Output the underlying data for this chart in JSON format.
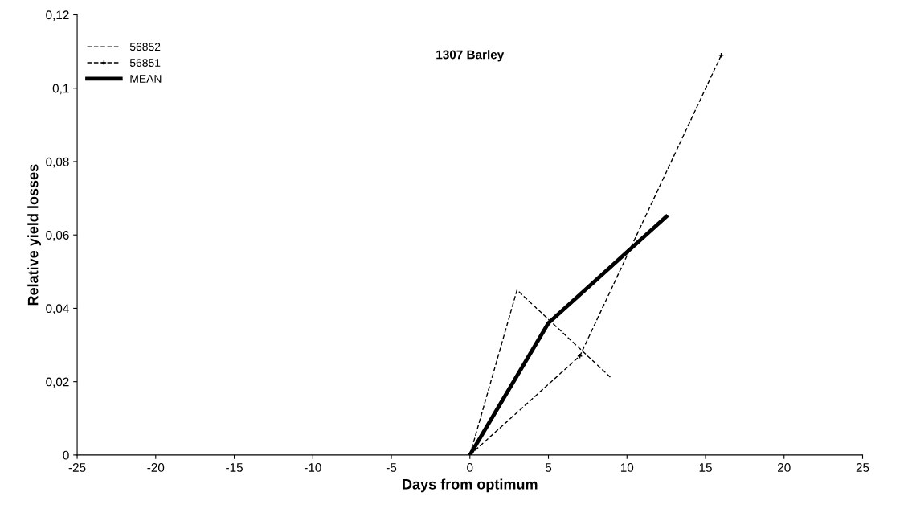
{
  "chart_data": {
    "type": "line",
    "title": "1307 Barley",
    "xlabel": "Days from optimum",
    "ylabel": "Relative yield losses",
    "xlim": [
      -25,
      25
    ],
    "xticks": [
      {
        "value": -25,
        "label": "-25"
      },
      {
        "value": -20,
        "label": "-20"
      },
      {
        "value": -15,
        "label": "-15"
      },
      {
        "value": -10,
        "label": "-10"
      },
      {
        "value": -5,
        "label": "-5"
      },
      0,
      5,
      10,
      15,
      20,
      25
    ],
    "ylim": [
      0,
      0.12
    ],
    "yticks": [
      0,
      {
        "value": 0.02,
        "label": "0,02"
      },
      {
        "value": 0.04,
        "label": "0,04"
      },
      {
        "value": 0.06,
        "label": "0,06"
      },
      {
        "value": 0.08,
        "label": "0,08"
      },
      {
        "value": 0.1,
        "label": "0,1"
      },
      {
        "value": 0.12,
        "label": "0,12"
      }
    ],
    "grid": false,
    "legend": "top left",
    "series": [
      {
        "name": "56852",
        "color": "#000000",
        "x": [
          0,
          3,
          9
        ],
        "values": [
          0,
          0.045,
          0.021
        ],
        "line_style": "dashed",
        "marker": "none"
      },
      {
        "name": "56851",
        "color": "#000000",
        "x": [
          0,
          7,
          16
        ],
        "values": [
          0,
          0.027,
          0.109
        ],
        "line_style": "dashed",
        "marker": "cross"
      },
      {
        "name": "MEAN",
        "color": "#000000",
        "x": [
          0,
          5,
          12.5
        ],
        "values": [
          0,
          0.036,
          0.065
        ],
        "line_style": "solid",
        "marker": "none"
      }
    ]
  }
}
